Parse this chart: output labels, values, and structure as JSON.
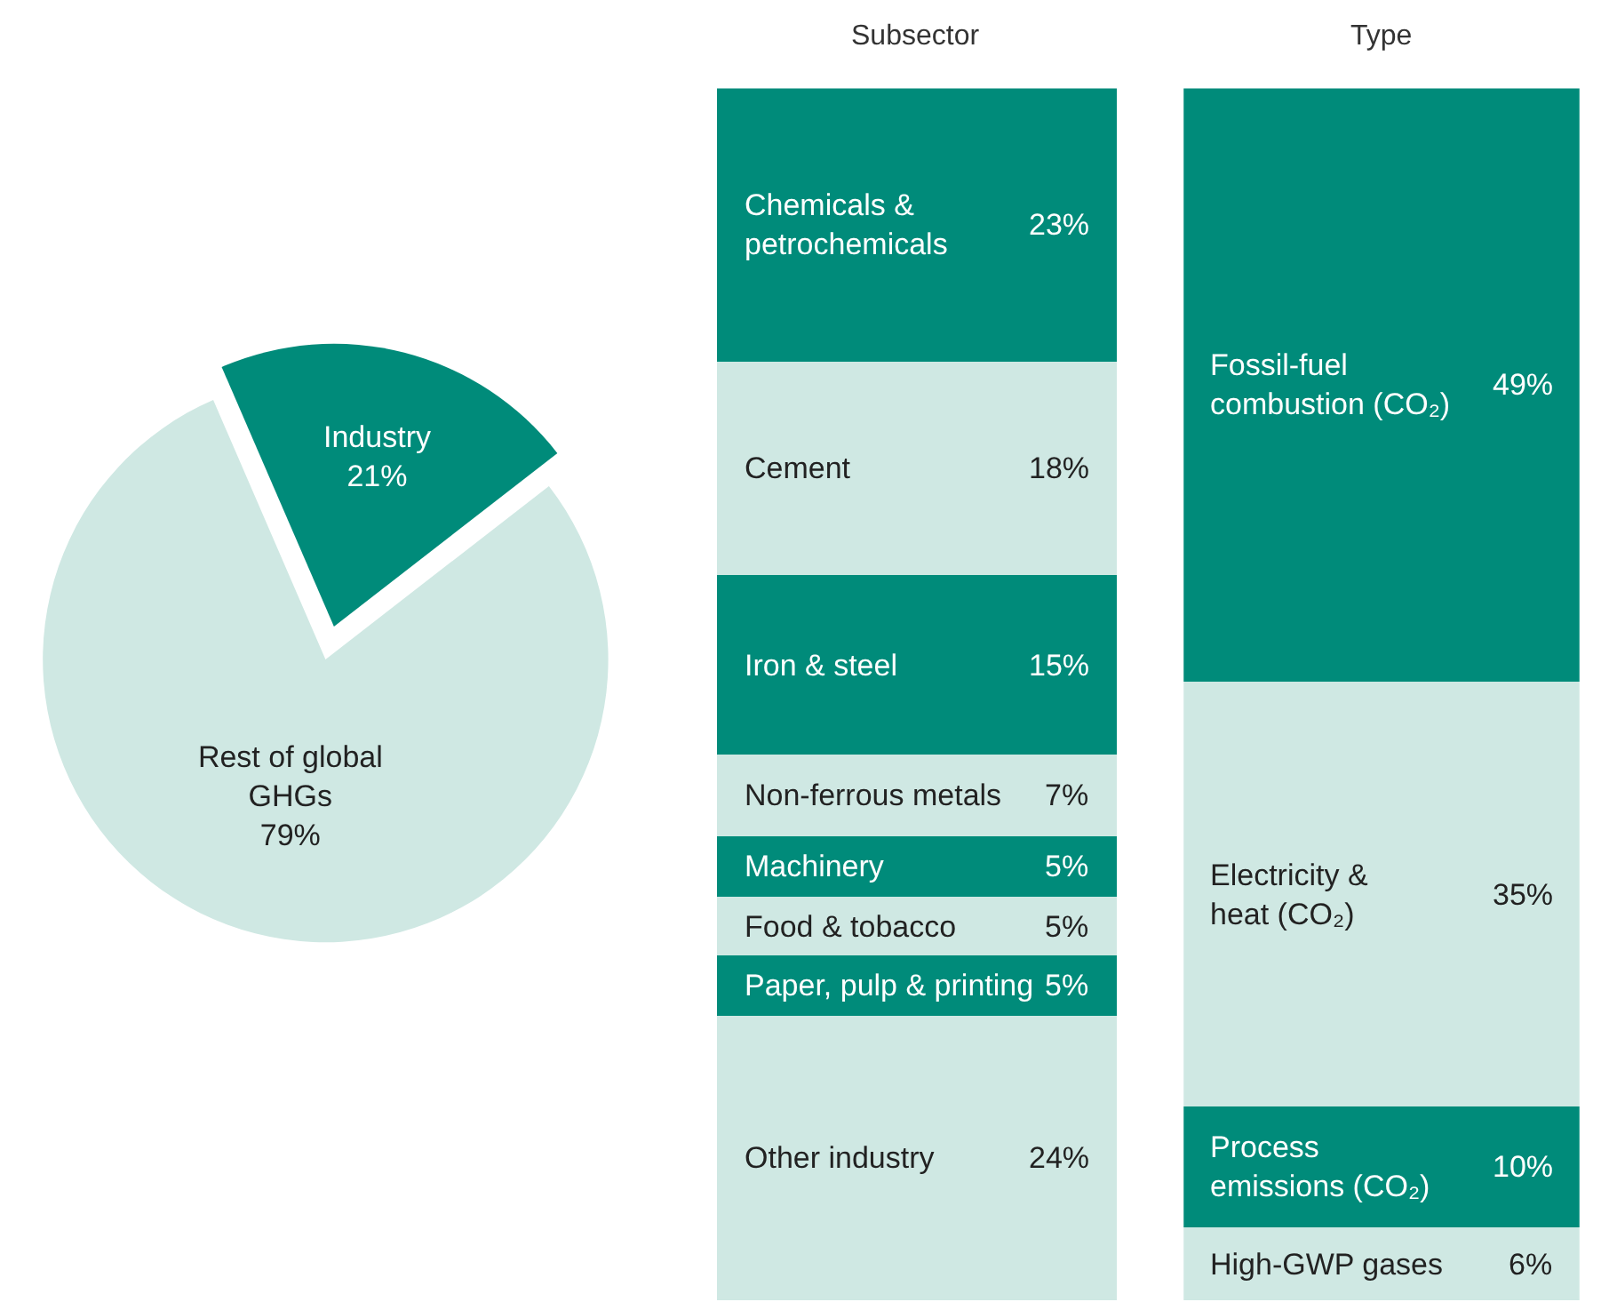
{
  "chart_data": [
    {
      "type": "pie",
      "categories": [
        "Rest of global GHGs",
        "Industry"
      ],
      "values": [
        79,
        21
      ],
      "colors": [
        "#cfe8e3",
        "#008b7a"
      ],
      "value_labels": [
        "79%",
        "21%"
      ]
    },
    {
      "type": "bar",
      "title": "Subsector",
      "stacked": true,
      "categories": [
        null
      ],
      "ylim": [
        0,
        102
      ],
      "series": [
        {
          "name": "Other industry",
          "color": "#cfe8e3",
          "values": [
            24
          ],
          "value_labels": [
            "24%"
          ]
        },
        {
          "name": "Paper, pulp & printing",
          "color": "#008b7a",
          "values": [
            5
          ],
          "value_labels": [
            "5%"
          ]
        },
        {
          "name": "Food & tobacco",
          "color": "#cfe8e3",
          "values": [
            5
          ],
          "value_labels": [
            "5%"
          ]
        },
        {
          "name": "Machinery",
          "color": "#008b7a",
          "values": [
            5
          ],
          "value_labels": [
            "5%"
          ]
        },
        {
          "name": "Non-ferrous metals",
          "color": "#cfe8e3",
          "values": [
            7
          ],
          "value_labels": [
            "7%"
          ]
        },
        {
          "name": "Iron & steel",
          "color": "#008b7a",
          "values": [
            15
          ],
          "value_labels": [
            "15%"
          ]
        },
        {
          "name": "Cement",
          "color": "#cfe8e3",
          "values": [
            18
          ],
          "value_labels": [
            "18%"
          ]
        },
        {
          "name": "Chemicals & petrochemicals",
          "color": "#008b7a",
          "values": [
            23
          ],
          "value_labels": [
            "23%"
          ]
        }
      ]
    },
    {
      "type": "bar",
      "title": "Type",
      "stacked": true,
      "categories": [
        null
      ],
      "ylim": [
        0,
        100
      ],
      "series": [
        {
          "name": "High-GWP gases",
          "color": "#cfe8e3",
          "values": [
            6
          ],
          "value_labels": [
            "6%"
          ]
        },
        {
          "name": "Process emissions (CO₂)",
          "color": "#008b7a",
          "values": [
            10
          ],
          "value_labels": [
            "10%"
          ]
        },
        {
          "name": "Electricity & heat (CO₂)",
          "color": "#cfe8e3",
          "values": [
            35
          ],
          "value_labels": [
            "35%"
          ]
        },
        {
          "name": "Fossil-fuel combustion (CO₂)",
          "color": "#008b7a",
          "values": [
            49
          ],
          "value_labels": [
            "49%"
          ]
        }
      ]
    }
  ]
}
